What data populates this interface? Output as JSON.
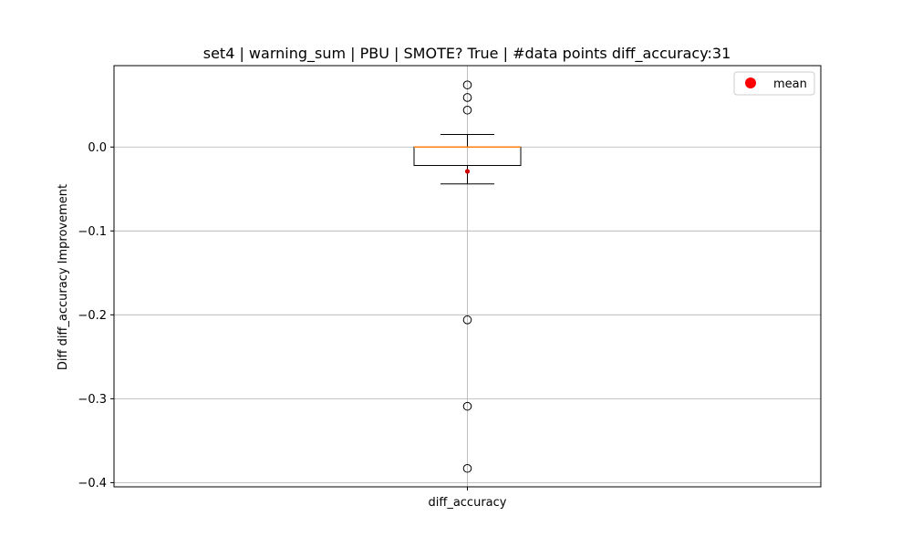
{
  "chart_data": {
    "type": "box",
    "title": "set4 | warning_sum | PBU | SMOTE? True | #data points diff_accuracy:31",
    "xlabel": "",
    "ylabel": "Diff diff_accuracy Improvement",
    "ylim": [
      -0.405,
      0.097
    ],
    "yticks": [
      0.0,
      -0.1,
      -0.2,
      -0.3,
      -0.4
    ],
    "ytick_labels": [
      "0.0",
      "−0.1",
      "−0.2",
      "−0.3",
      "−0.4"
    ],
    "categories": [
      "diff_accuracy"
    ],
    "grid": true,
    "legend": {
      "position": "top-right",
      "entries": [
        {
          "label": "mean",
          "color": "#ff0000"
        }
      ]
    },
    "boxes": [
      {
        "category": "diff_accuracy",
        "whisker_low": -0.044,
        "q1": -0.022,
        "median": 0.0,
        "q3": 0.0,
        "whisker_high": 0.015,
        "mean": -0.029,
        "outliers": [
          0.074,
          0.059,
          0.044,
          -0.206,
          -0.309,
          -0.383
        ]
      }
    ],
    "colors": {
      "box": "#000000",
      "median": "#ff7f0e",
      "mean": "#d00000",
      "grid": "#b0b0b0"
    }
  }
}
